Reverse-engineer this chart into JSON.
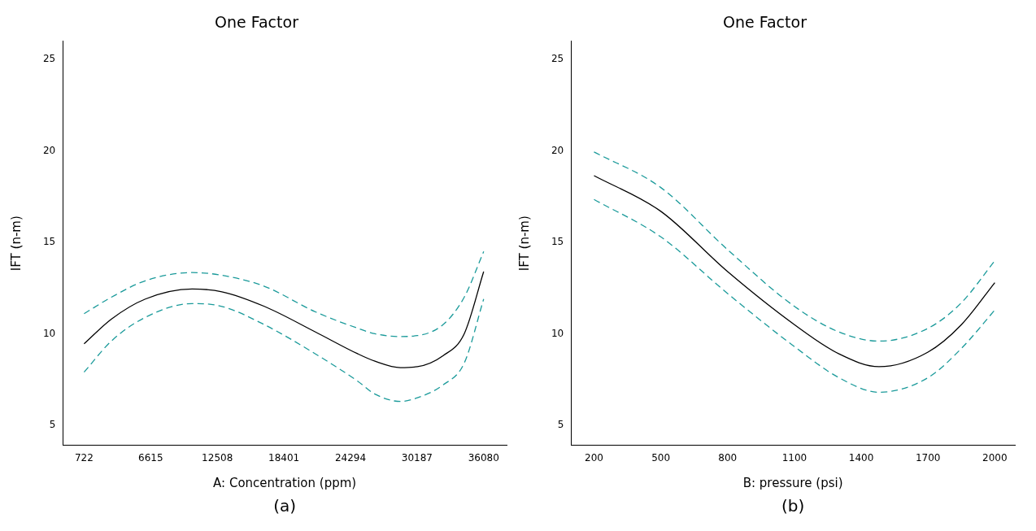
{
  "chart_data": [
    {
      "type": "line",
      "title": "One Factor",
      "xlabel": "A: Concentration (ppm)",
      "ylabel": "IFT (n-m)",
      "annotations": [
        "(a)"
      ],
      "x": [
        722,
        3130,
        6140,
        10280,
        12910,
        16670,
        21190,
        24950,
        26460,
        28710,
        30220,
        32480,
        34360,
        36080
      ],
      "series": [
        {
          "color": "#000000",
          "line_style": "solid",
          "values": [
            9.45,
            10.8,
            11.9,
            12.45,
            12.3,
            11.5,
            10.1,
            8.9,
            8.5,
            8.15,
            8.2,
            8.8,
            10,
            13.4
          ]
        },
        {
          "color": "#1a9a9a",
          "line_style": "dashed",
          "values": [
            11.1,
            12.0,
            12.9,
            13.35,
            13.2,
            12.6,
            11.2,
            10.3,
            10.0,
            9.85,
            9.9,
            10.5,
            12,
            14.5
          ]
        },
        {
          "color": "#1a9a9a",
          "line_style": "dashed",
          "values": [
            7.9,
            9.6,
            10.9,
            11.65,
            11.5,
            10.5,
            8.9,
            7.4,
            6.7,
            6.3,
            6.5,
            7.2,
            8.4,
            11.9
          ]
        }
      ],
      "xlim": [
        -1160,
        38110
      ],
      "xticks": [
        722,
        6615,
        12508,
        18401,
        24294,
        30187,
        36080
      ],
      "ylim": [
        3.9,
        26
      ],
      "yticks": [
        5,
        10,
        15,
        20,
        25
      ],
      "grid": false,
      "legend": false,
      "marker": "none"
    },
    {
      "type": "line",
      "title": "One Factor",
      "xlabel": "B: pressure (psi)",
      "ylabel": "IFT (n-m)",
      "annotations": [
        "(b)"
      ],
      "x": [
        200,
        500,
        800,
        1100,
        1300,
        1480,
        1700,
        1850,
        2000
      ],
      "series": [
        {
          "color": "#000000",
          "line_style": "solid",
          "values": [
            18.65,
            16.7,
            13.4,
            10.5,
            8.9,
            8.2,
            9.0,
            10.5,
            12.8
          ]
        },
        {
          "color": "#1a9a9a",
          "line_style": "dashed",
          "values": [
            19.95,
            18.0,
            14.6,
            11.5,
            10.1,
            9.6,
            10.3,
            11.7,
            14.0
          ]
        },
        {
          "color": "#1a9a9a",
          "line_style": "dashed",
          "values": [
            17.35,
            15.3,
            12.2,
            9.3,
            7.6,
            6.8,
            7.6,
            9.2,
            11.3
          ]
        }
      ],
      "xlim": [
        97,
        2090
      ],
      "xticks": [
        200,
        500,
        800,
        1100,
        1400,
        1700,
        2000
      ],
      "ylim": [
        3.9,
        26
      ],
      "yticks": [
        5,
        10,
        15,
        20,
        25
      ],
      "grid": false,
      "legend": false,
      "marker": "none"
    }
  ]
}
